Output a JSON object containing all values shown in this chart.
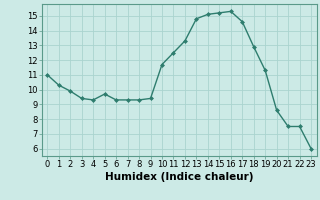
{
  "x": [
    0,
    1,
    2,
    3,
    4,
    5,
    6,
    7,
    8,
    9,
    10,
    11,
    12,
    13,
    14,
    15,
    16,
    17,
    18,
    19,
    20,
    21,
    22,
    23
  ],
  "y": [
    11.0,
    10.3,
    9.9,
    9.4,
    9.3,
    9.7,
    9.3,
    9.3,
    9.3,
    9.4,
    11.7,
    12.5,
    13.3,
    14.8,
    15.1,
    15.2,
    15.3,
    14.6,
    12.9,
    11.3,
    8.6,
    7.5,
    7.5,
    6.0
  ],
  "xlabel": "Humidex (Indice chaleur)",
  "xlim": [
    -0.5,
    23.5
  ],
  "ylim": [
    5.5,
    15.8
  ],
  "yticks": [
    6,
    7,
    8,
    9,
    10,
    11,
    12,
    13,
    14,
    15
  ],
  "xticks": [
    0,
    1,
    2,
    3,
    4,
    5,
    6,
    7,
    8,
    9,
    10,
    11,
    12,
    13,
    14,
    15,
    16,
    17,
    18,
    19,
    20,
    21,
    22,
    23
  ],
  "bg_color": "#cceae6",
  "line_color": "#2e7d6e",
  "grid_color": "#aad4cf",
  "tick_fontsize": 6.0,
  "xlabel_fontsize": 7.5
}
